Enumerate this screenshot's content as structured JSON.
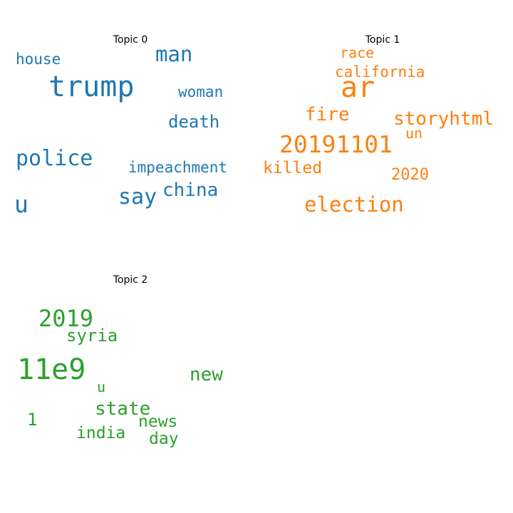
{
  "chart_data": [
    {
      "type": "wordcloud",
      "title": "Topic 0",
      "color": "#1f77b4",
      "words": [
        "trump",
        "police",
        "man",
        "u",
        "say",
        "china",
        "death",
        "woman",
        "impeachment",
        "house"
      ]
    },
    {
      "type": "wordcloud",
      "title": "Topic 1",
      "color": "#ff7f0e",
      "words": [
        "ar",
        "20191101",
        "election",
        "storyhtml",
        "fire",
        "killed",
        "california",
        "race",
        "2020",
        "un"
      ]
    },
    {
      "type": "wordcloud",
      "title": "Topic 2",
      "color": "#2ca02c",
      "words": [
        "11e9",
        "2019",
        "new",
        "state",
        "syria",
        "india",
        "news",
        "day",
        "1",
        "u"
      ]
    }
  ]
}
